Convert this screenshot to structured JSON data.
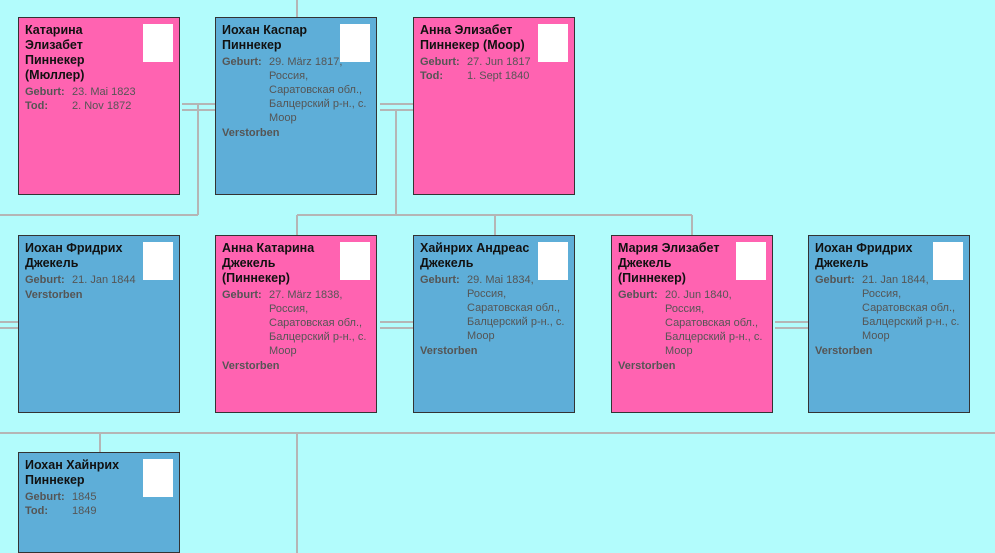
{
  "nodes": [
    {
      "name": "Катарина Элизабет Пиннекер (Мюллер)",
      "facts": [
        {
          "label": "Geburt:",
          "value": "23. Mai 1823"
        },
        {
          "label": "Tod:",
          "value": "2. Nov 1872"
        }
      ]
    },
    {
      "name": "Иохан Каспар Пиннекер",
      "facts": [
        {
          "label": "Geburt:",
          "value": "29. März 1817, Россия, Саратовская обл., Балцерский р-н., с. Моор"
        }
      ],
      "status": "Verstorben"
    },
    {
      "name": "Анна Элизабет Пиннекер (Моор)",
      "facts": [
        {
          "label": "Geburt:",
          "value": "27. Jun 1817"
        },
        {
          "label": "Tod:",
          "value": "1. Sept 1840"
        }
      ]
    },
    {
      "name": "Иохан Фридрих Джекель",
      "facts": [
        {
          "label": "Geburt:",
          "value": "21. Jan 1844"
        }
      ],
      "status": "Verstorben"
    },
    {
      "name": "Анна Катарина Джекель (Пиннекер)",
      "facts": [
        {
          "label": "Geburt:",
          "value": "27. März 1838, Россия, Саратовская обл., Балцерский р-н., с. Моор"
        }
      ],
      "status": "Verstorben"
    },
    {
      "name": "Хайнрих Андреас Джекель",
      "facts": [
        {
          "label": "Geburt:",
          "value": "29. Mai 1834, Россия, Саратовская обл., Балцерский р-н., с. Моор"
        }
      ],
      "status": "Verstorben"
    },
    {
      "name": "Мария Элизабет Джекель (Пиннекер)",
      "facts": [
        {
          "label": "Geburt:",
          "value": "20. Jun 1840, Россия, Саратовская обл., Балцерский р-н., с. Моор"
        }
      ],
      "status": "Verstorben"
    },
    {
      "name": "Иохан Фридрих Джекель",
      "facts": [
        {
          "label": "Geburt:",
          "value": "21. Jan 1844, Россия, Саратовская обл., Балцерский р-н., с. Моор"
        }
      ],
      "status": "Verstorben"
    },
    {
      "name": "Иохан Хайнрих Пиннекер",
      "facts": [
        {
          "label": "Geburt:",
          "value": "1845"
        },
        {
          "label": "Tod:",
          "value": "1849"
        }
      ]
    }
  ]
}
